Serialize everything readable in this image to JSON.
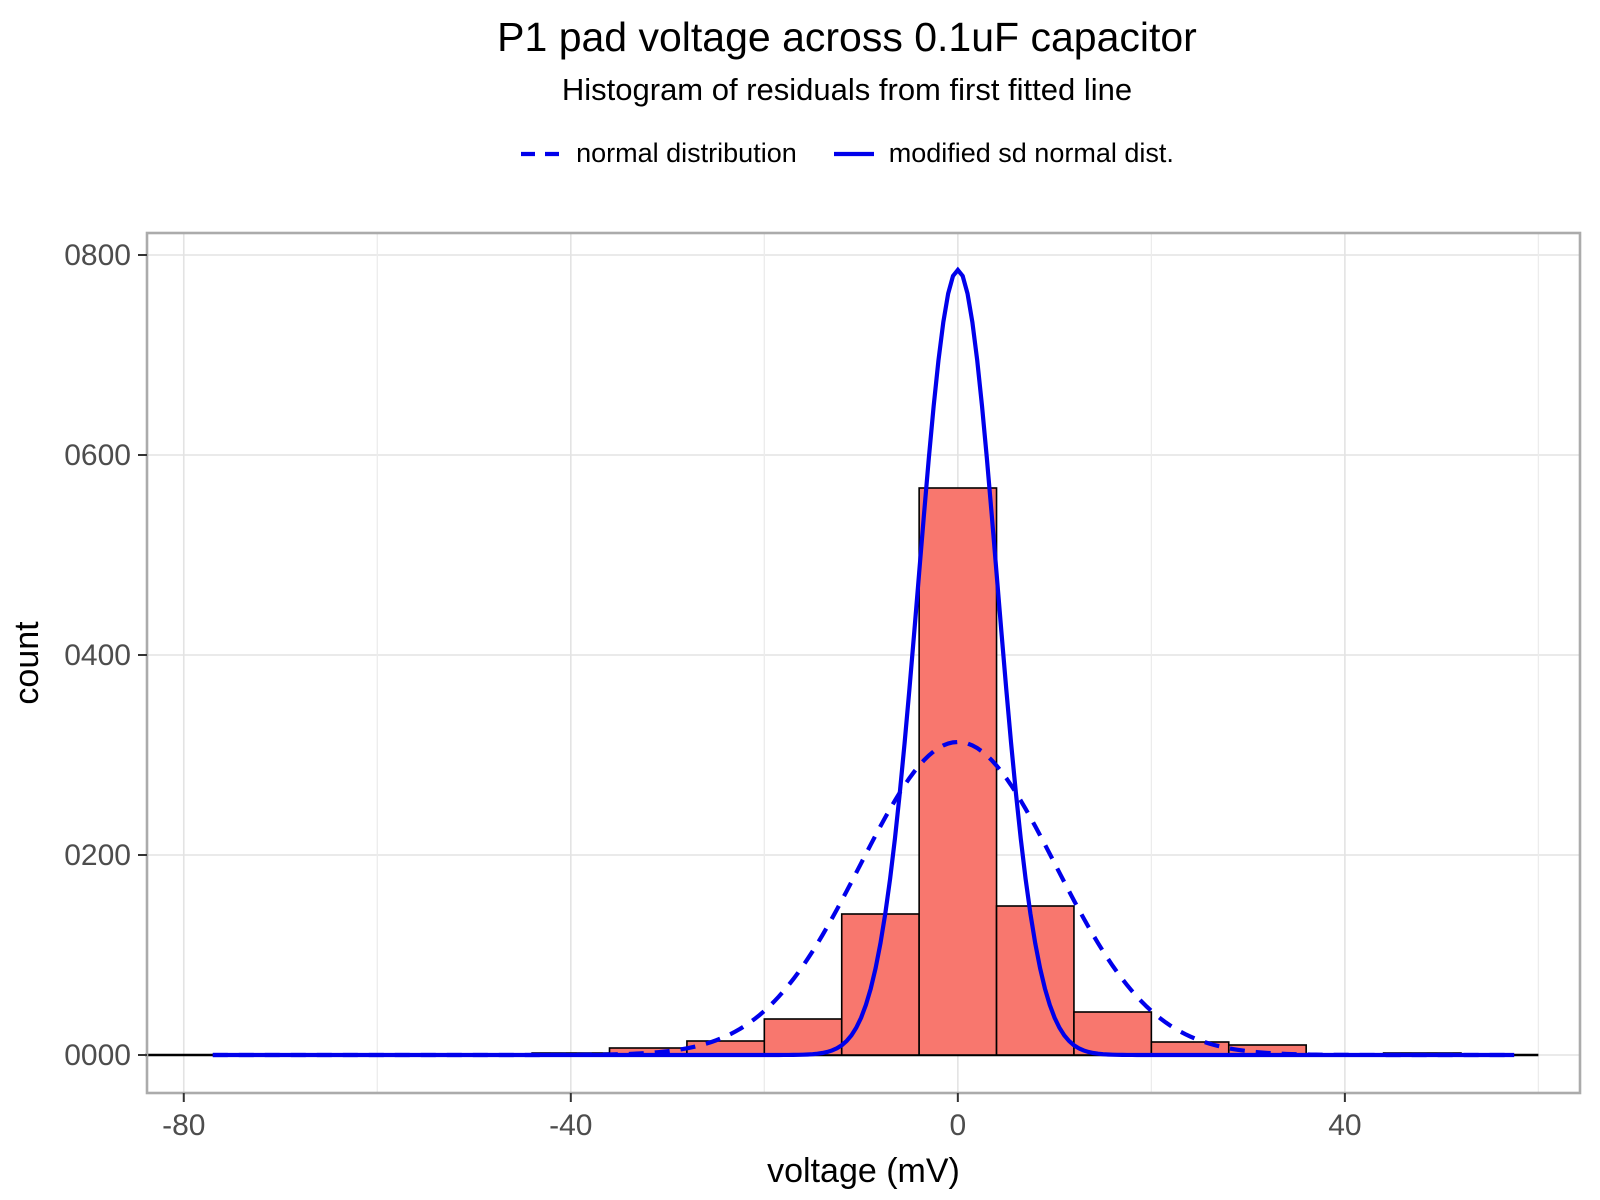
{
  "title": "P1 pad voltage across 0.1uF capacitor",
  "subtitle": "Histogram of residuals from first fitted line",
  "legend": {
    "items": [
      {
        "label": "normal distribution",
        "style": "dashed"
      },
      {
        "label": "modified sd normal dist.",
        "style": "solid"
      }
    ]
  },
  "chart_data": {
    "type": "bar",
    "subtype": "histogram with fitted gaussian curves",
    "title": "P1 pad voltage across 0.1uF capacitor",
    "subtitle": "Histogram of residuals from first fitted line",
    "xlabel": "voltage (mV)",
    "ylabel": "count",
    "xlim": [
      -83.8,
      64.3
    ],
    "ylim": [
      -38,
      822
    ],
    "x_major_ticks": [
      -80,
      -40,
      0,
      40
    ],
    "x_tick_labels": [
      "-80",
      "-40",
      "0",
      "40"
    ],
    "x_minor_gridlines": [
      -60,
      -20,
      20,
      60
    ],
    "y_tick_values": [
      0,
      200,
      400,
      600,
      800
    ],
    "y_tick_labels": [
      "0000",
      "0200",
      "0400",
      "0600",
      "0800"
    ],
    "grid": "major-and-minor-x, major-y, no-minor-y",
    "legend_position": "top-center",
    "bin_width": 8,
    "bins": [
      {
        "x0": -84,
        "x1": -76,
        "count": 0
      },
      {
        "x0": -76,
        "x1": -68,
        "count": 0
      },
      {
        "x0": -68,
        "x1": -60,
        "count": 0
      },
      {
        "x0": -60,
        "x1": -52,
        "count": 0
      },
      {
        "x0": -52,
        "x1": -44,
        "count": 1
      },
      {
        "x0": -44,
        "x1": -36,
        "count": 2
      },
      {
        "x0": -36,
        "x1": -28,
        "count": 7
      },
      {
        "x0": -28,
        "x1": -20,
        "count": 14
      },
      {
        "x0": -20,
        "x1": -12,
        "count": 36
      },
      {
        "x0": -12,
        "x1": -4,
        "count": 141
      },
      {
        "x0": -4,
        "x1": 4,
        "count": 567
      },
      {
        "x0": 4,
        "x1": 12,
        "count": 149
      },
      {
        "x0": 12,
        "x1": 20,
        "count": 43
      },
      {
        "x0": 20,
        "x1": 28,
        "count": 13
      },
      {
        "x0": 28,
        "x1": 36,
        "count": 10
      },
      {
        "x0": 36,
        "x1": 44,
        "count": 1
      },
      {
        "x0": 44,
        "x1": 52,
        "count": 2
      },
      {
        "x0": 52,
        "x1": 60,
        "count": 0
      }
    ],
    "curves": [
      {
        "name": "normal distribution",
        "shape": "gaussian",
        "peak": 313,
        "mean": 0,
        "sd": 10.1,
        "dashed": true,
        "x_range": [
          -77,
          57.5
        ]
      },
      {
        "name": "modified sd normal dist.",
        "shape": "gaussian",
        "peak": 785,
        "mean": 0,
        "sd": 4.05,
        "dashed": false,
        "x_range": [
          -77,
          57.5
        ]
      }
    ],
    "colors": {
      "bar_fill": "#F8776E",
      "bar_stroke": "#000000",
      "curve_blue": "#0000EB",
      "grid_major": "#E3E3E3",
      "grid_minor": "#ECECEC",
      "panel_border": "#ABABAB",
      "tick_mark": "#333333",
      "tick_label": "#4D4D4D",
      "axis_title": "#000000",
      "baseline": "#000000",
      "background": "#FFFFFF"
    }
  }
}
